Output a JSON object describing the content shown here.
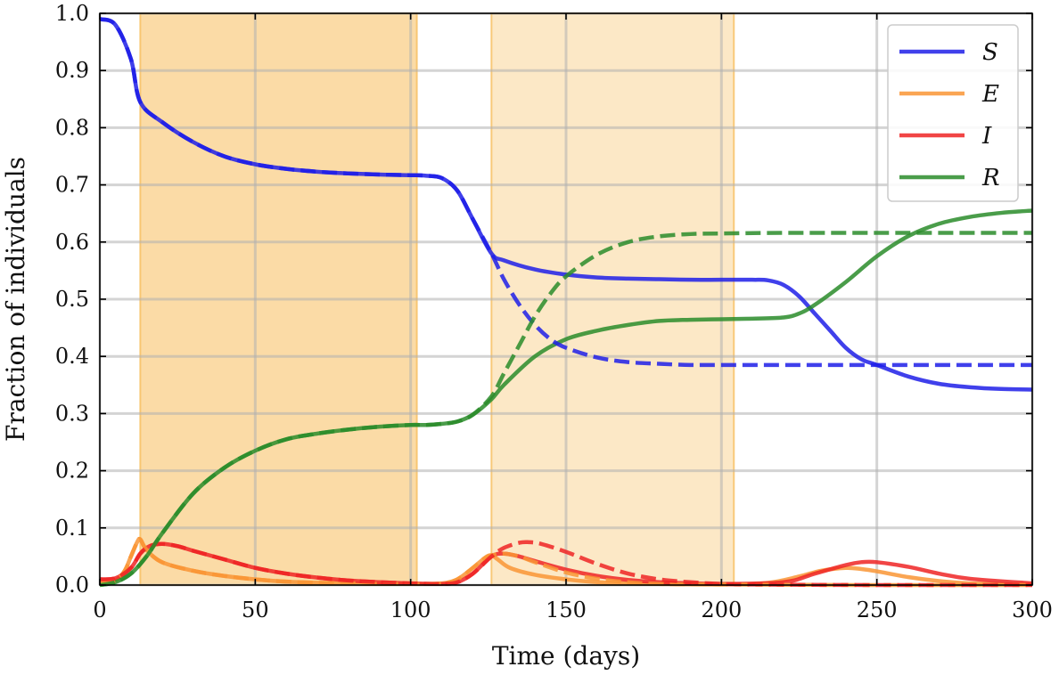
{
  "chart_data": {
    "type": "line",
    "title": "",
    "xlabel": "Time (days)",
    "ylabel": "Fraction of individuals",
    "xlim": [
      0,
      300
    ],
    "ylim": [
      0,
      1.0
    ],
    "x_ticks": [
      0,
      50,
      100,
      150,
      200,
      250,
      300
    ],
    "y_ticks": [
      0.0,
      0.1,
      0.2,
      0.3,
      0.4,
      0.5,
      0.6,
      0.7,
      0.8,
      0.9,
      1.0
    ],
    "x_tick_labels": [
      "0",
      "50",
      "100",
      "150",
      "200",
      "250",
      "300"
    ],
    "y_tick_labels": [
      "0.0",
      "0.1",
      "0.2",
      "0.3",
      "0.4",
      "0.5",
      "0.6",
      "0.7",
      "0.8",
      "0.9",
      "1.0"
    ],
    "grid": true,
    "legend_position": "top-right",
    "shaded_regions": [
      {
        "x_start": 13,
        "x_end": 102,
        "color": "#f7b84e",
        "opacity": 0.5
      },
      {
        "x_start": 126,
        "x_end": 204,
        "color": "#f7b84e",
        "opacity": 0.32
      }
    ],
    "series": [
      {
        "name": "S",
        "style": "solid",
        "color": "#1f1fe8",
        "x": [
          0,
          5,
          10,
          13,
          20,
          30,
          40,
          50,
          60,
          70,
          80,
          90,
          100,
          105,
          110,
          115,
          120,
          126,
          130,
          140,
          150,
          160,
          170,
          180,
          190,
          200,
          210,
          215,
          220,
          225,
          230,
          235,
          240,
          245,
          250,
          260,
          270,
          280,
          290,
          300
        ],
        "y": [
          0.99,
          0.98,
          0.92,
          0.845,
          0.81,
          0.775,
          0.75,
          0.736,
          0.728,
          0.723,
          0.72,
          0.718,
          0.717,
          0.716,
          0.712,
          0.69,
          0.64,
          0.58,
          0.568,
          0.552,
          0.543,
          0.538,
          0.536,
          0.535,
          0.534,
          0.534,
          0.534,
          0.533,
          0.525,
          0.505,
          0.475,
          0.445,
          0.415,
          0.395,
          0.385,
          0.365,
          0.352,
          0.346,
          0.343,
          0.342
        ]
      },
      {
        "name": "E",
        "style": "solid",
        "color": "#f99535",
        "x": [
          0,
          5,
          8,
          10,
          12,
          13,
          15,
          20,
          30,
          40,
          50,
          60,
          70,
          80,
          90,
          100,
          110,
          115,
          120,
          124,
          126,
          128,
          132,
          140,
          150,
          160,
          170,
          180,
          200,
          215,
          225,
          232,
          240,
          245,
          250,
          260,
          270,
          280,
          300
        ],
        "y": [
          0.005,
          0.008,
          0.025,
          0.05,
          0.075,
          0.08,
          0.062,
          0.04,
          0.025,
          0.016,
          0.01,
          0.006,
          0.004,
          0.003,
          0.002,
          0.002,
          0.003,
          0.01,
          0.03,
          0.048,
          0.052,
          0.045,
          0.03,
          0.018,
          0.01,
          0.005,
          0.003,
          0.002,
          0.001,
          0.004,
          0.015,
          0.025,
          0.03,
          0.028,
          0.024,
          0.014,
          0.007,
          0.003,
          0.001
        ]
      },
      {
        "name": "I",
        "style": "solid",
        "color": "#ee2424",
        "x": [
          0,
          5,
          10,
          13,
          16,
          20,
          25,
          30,
          40,
          50,
          60,
          70,
          80,
          90,
          100,
          110,
          115,
          120,
          126,
          130,
          135,
          140,
          150,
          160,
          170,
          180,
          200,
          220,
          230,
          240,
          245,
          250,
          260,
          270,
          280,
          300
        ],
        "y": [
          0.01,
          0.012,
          0.03,
          0.055,
          0.068,
          0.072,
          0.068,
          0.06,
          0.045,
          0.03,
          0.02,
          0.013,
          0.008,
          0.005,
          0.003,
          0.002,
          0.005,
          0.02,
          0.05,
          0.055,
          0.05,
          0.042,
          0.027,
          0.016,
          0.009,
          0.005,
          0.002,
          0.005,
          0.02,
          0.035,
          0.04,
          0.04,
          0.032,
          0.02,
          0.011,
          0.003
        ]
      },
      {
        "name": "R",
        "style": "solid",
        "color": "#2a8c2a",
        "x": [
          0,
          5,
          10,
          15,
          20,
          30,
          40,
          50,
          60,
          70,
          80,
          90,
          100,
          105,
          110,
          115,
          120,
          126,
          130,
          140,
          150,
          160,
          170,
          180,
          190,
          200,
          210,
          220,
          225,
          230,
          240,
          250,
          260,
          270,
          280,
          290,
          300
        ],
        "y": [
          0.0,
          0.005,
          0.02,
          0.05,
          0.09,
          0.16,
          0.205,
          0.235,
          0.255,
          0.265,
          0.272,
          0.277,
          0.28,
          0.28,
          0.282,
          0.286,
          0.298,
          0.325,
          0.35,
          0.4,
          0.43,
          0.445,
          0.455,
          0.462,
          0.464,
          0.465,
          0.466,
          0.468,
          0.475,
          0.49,
          0.53,
          0.575,
          0.61,
          0.632,
          0.644,
          0.651,
          0.655
        ]
      },
      {
        "name": "S (dashed)",
        "style": "dashed",
        "color": "#1f1fe8",
        "x": [
          0,
          5,
          10,
          13,
          20,
          30,
          40,
          50,
          60,
          70,
          80,
          90,
          100,
          105,
          110,
          115,
          120,
          126,
          130,
          135,
          140,
          145,
          150,
          160,
          170,
          180,
          190,
          200,
          220,
          250,
          300
        ],
        "y": [
          0.99,
          0.98,
          0.92,
          0.845,
          0.81,
          0.775,
          0.75,
          0.736,
          0.728,
          0.723,
          0.72,
          0.718,
          0.717,
          0.716,
          0.712,
          0.69,
          0.64,
          0.58,
          0.535,
          0.49,
          0.455,
          0.43,
          0.415,
          0.398,
          0.39,
          0.387,
          0.385,
          0.385,
          0.385,
          0.385,
          0.385
        ]
      },
      {
        "name": "E (dashed)",
        "style": "dashed",
        "color": "#f99535",
        "x": [
          0,
          5,
          8,
          10,
          12,
          13,
          15,
          20,
          30,
          40,
          50,
          60,
          70,
          80,
          90,
          100,
          110,
          115,
          120,
          124,
          126,
          130,
          135,
          140,
          150,
          160,
          170,
          180,
          200,
          250,
          300
        ],
        "y": [
          0.005,
          0.008,
          0.025,
          0.05,
          0.075,
          0.08,
          0.062,
          0.04,
          0.025,
          0.016,
          0.01,
          0.006,
          0.004,
          0.003,
          0.002,
          0.002,
          0.003,
          0.01,
          0.03,
          0.048,
          0.052,
          0.055,
          0.05,
          0.04,
          0.022,
          0.011,
          0.005,
          0.002,
          0.001,
          0.0,
          0.0
        ]
      },
      {
        "name": "I (dashed)",
        "style": "dashed",
        "color": "#ee2424",
        "x": [
          0,
          5,
          10,
          13,
          16,
          20,
          25,
          30,
          40,
          50,
          60,
          70,
          80,
          90,
          100,
          110,
          115,
          120,
          126,
          130,
          135,
          138,
          142,
          150,
          160,
          170,
          180,
          190,
          200,
          210,
          250,
          300
        ],
        "y": [
          0.01,
          0.012,
          0.03,
          0.055,
          0.068,
          0.072,
          0.068,
          0.06,
          0.045,
          0.03,
          0.02,
          0.013,
          0.008,
          0.005,
          0.003,
          0.002,
          0.005,
          0.02,
          0.05,
          0.065,
          0.074,
          0.075,
          0.072,
          0.058,
          0.037,
          0.02,
          0.01,
          0.005,
          0.002,
          0.001,
          0.0,
          0.0
        ]
      },
      {
        "name": "R (dashed)",
        "style": "dashed",
        "color": "#2a8c2a",
        "x": [
          0,
          5,
          10,
          15,
          20,
          30,
          40,
          50,
          60,
          70,
          80,
          90,
          100,
          105,
          110,
          115,
          120,
          126,
          130,
          135,
          140,
          145,
          150,
          160,
          170,
          180,
          190,
          200,
          220,
          250,
          300
        ],
        "y": [
          0.0,
          0.005,
          0.02,
          0.05,
          0.09,
          0.16,
          0.205,
          0.235,
          0.255,
          0.265,
          0.272,
          0.277,
          0.28,
          0.28,
          0.282,
          0.286,
          0.298,
          0.33,
          0.37,
          0.42,
          0.47,
          0.51,
          0.54,
          0.578,
          0.6,
          0.61,
          0.614,
          0.615,
          0.616,
          0.616,
          0.616
        ]
      }
    ],
    "legend": [
      {
        "label": "S",
        "color": "#1f1fe8"
      },
      {
        "label": "E",
        "color": "#f99535"
      },
      {
        "label": "I",
        "color": "#ee2424"
      },
      {
        "label": "R",
        "color": "#2a8c2a"
      }
    ]
  }
}
